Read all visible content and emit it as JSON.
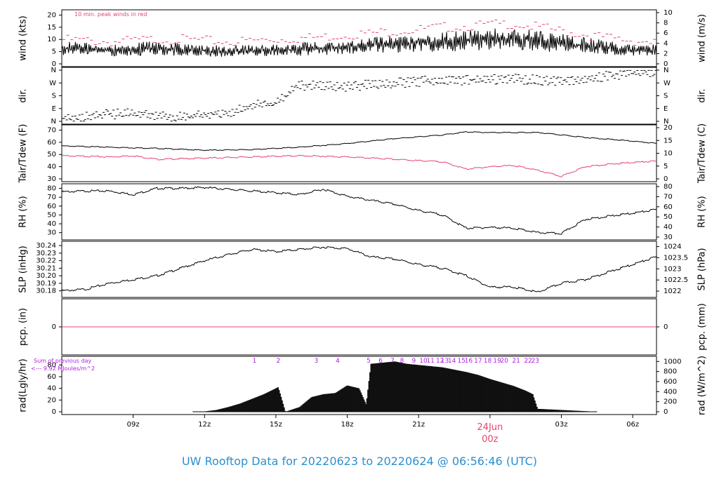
{
  "title": "UW Rooftop Data for 20220623  to  20220624 @ 06:56:46  (UTC)",
  "colors": {
    "title": "#2b8fd0",
    "peak": "#e3466e",
    "tdew": "#e3466e",
    "purple": "#b021e0",
    "date": "#e3466e",
    "line": "#000000"
  },
  "chart_data": [
    {
      "type": "line",
      "panel": "wind",
      "ylabel": "wind (kts)",
      "ylabel_right": "wind (m/s)",
      "ylim": [
        0,
        21
      ],
      "yticks": [
        0,
        5,
        10,
        15,
        20
      ],
      "yticks_right": [
        0,
        2,
        4,
        6,
        8,
        10
      ],
      "annotation": "10 min. peak winds in red",
      "series": [
        {
          "x": [
            6,
            7,
            8,
            9,
            10,
            11,
            12,
            13,
            14,
            15,
            16,
            17,
            18,
            19,
            20,
            21,
            22,
            23,
            24,
            25,
            26,
            27,
            28,
            29,
            30,
            31
          ],
          "values": [
            6.5,
            6,
            5.5,
            6,
            6.5,
            6,
            5.5,
            5,
            5.5,
            5.5,
            6,
            6.5,
            7,
            7.5,
            8,
            8.5,
            9,
            9.5,
            10,
            10.5,
            9.5,
            8.5,
            7.5,
            6.5,
            5.5,
            5.5
          ]
        },
        {
          "name": "10 min. peak winds",
          "x": [
            6,
            7,
            8,
            9,
            10,
            11,
            12,
            13,
            14,
            15,
            16,
            17,
            18,
            19,
            20,
            21,
            22,
            23,
            24,
            25,
            26,
            27,
            28,
            29,
            30,
            31
          ],
          "values": [
            10,
            9.5,
            9,
            9.5,
            10,
            10,
            9.5,
            9,
            9.5,
            10,
            10.5,
            11,
            12,
            12.5,
            13.5,
            14,
            15,
            15.5,
            16,
            16.5,
            15,
            13.5,
            12,
            10.5,
            9.5,
            9
          ]
        }
      ]
    },
    {
      "type": "scatter",
      "panel": "direction",
      "ylabel": "dir.",
      "ylabel_right": "dir.",
      "yticks": [
        "N",
        "E",
        "S",
        "W",
        "N"
      ],
      "series": [
        {
          "x": [
            6,
            7,
            8,
            9,
            10,
            11,
            12,
            13,
            14,
            15,
            16,
            17,
            18,
            19,
            20,
            21,
            22,
            23,
            24,
            25,
            26,
            27,
            28,
            29,
            30,
            31
          ],
          "values": [
            20,
            30,
            50,
            60,
            40,
            30,
            45,
            60,
            110,
            130,
            250,
            255,
            240,
            260,
            270,
            280,
            290,
            290,
            295,
            300,
            290,
            285,
            300,
            320,
            345,
            350
          ]
        }
      ]
    },
    {
      "type": "line",
      "panel": "temperature",
      "ylabel": "Tair/Tdew (F)",
      "ylabel_right": "Tair/Tdew (C)",
      "ylim": [
        30,
        72
      ],
      "yticks": [
        30,
        40,
        50,
        60,
        70
      ],
      "yticks_right": [
        0,
        5,
        10,
        15,
        20
      ],
      "series": [
        {
          "name": "Tair",
          "x": [
            6,
            8,
            10,
            12,
            14,
            16,
            18,
            20,
            22,
            23,
            24,
            26,
            27,
            28,
            30,
            31
          ],
          "values": [
            57,
            56,
            55,
            53.5,
            54,
            56,
            59,
            63,
            66,
            68.5,
            68,
            68,
            66,
            64,
            61,
            59
          ]
        },
        {
          "name": "Tdew",
          "x": [
            6,
            8,
            9,
            10,
            12,
            14,
            16,
            18,
            20,
            21,
            22,
            23,
            24,
            25,
            26,
            27,
            28,
            29,
            30,
            31
          ],
          "values": [
            49,
            48,
            49,
            46,
            47,
            48,
            49,
            48,
            46,
            45,
            44,
            38,
            40,
            41,
            37,
            32,
            40,
            42,
            43.5,
            44.5
          ]
        }
      ]
    },
    {
      "type": "line",
      "panel": "humidity",
      "ylabel": "RH (%)",
      "ylabel_right": "RH (%)",
      "ylim": [
        25,
        82
      ],
      "yticks": [
        30,
        40,
        50,
        60,
        70,
        80
      ],
      "series": [
        {
          "x": [
            6,
            7,
            8,
            9,
            10,
            11,
            12,
            14,
            16,
            17,
            18,
            20,
            21,
            22,
            23,
            24,
            25,
            26,
            27,
            28,
            30,
            31
          ],
          "values": [
            76,
            77,
            77,
            73,
            80,
            80,
            81,
            77,
            73,
            79,
            71,
            62,
            55,
            50,
            35,
            36,
            35,
            30,
            29,
            45,
            52,
            56
          ]
        }
      ]
    },
    {
      "type": "line",
      "panel": "pressure",
      "ylabel": "SLP (inHg)",
      "ylabel_right": "SLP (hPa)",
      "ylim": [
        30.175,
        30.242
      ],
      "yticks": [
        30.18,
        30.19,
        30.2,
        30.21,
        30.22,
        30.23,
        30.24
      ],
      "yticks_right": [
        "1022",
        "1022.5",
        "1023",
        "1023.5",
        "1024"
      ],
      "series": [
        {
          "x": [
            6,
            7,
            8,
            9,
            10,
            11,
            12,
            13,
            14,
            15,
            16,
            17,
            18,
            19,
            20,
            21,
            22,
            23,
            24,
            25,
            26,
            27,
            28,
            29,
            30,
            31
          ],
          "values": [
            30.18,
            30.182,
            30.19,
            30.195,
            30.2,
            30.21,
            30.22,
            30.228,
            30.235,
            30.232,
            30.235,
            30.238,
            30.236,
            30.225,
            30.222,
            30.215,
            30.21,
            30.2,
            30.185,
            30.185,
            30.178,
            30.19,
            30.195,
            30.205,
            30.215,
            30.225
          ]
        }
      ]
    },
    {
      "type": "line",
      "panel": "precipitation",
      "ylabel": "pcp. (in)",
      "ylabel_right": "pcp. (mm)",
      "yticks": [
        0
      ],
      "yticks_right": [
        0
      ],
      "series": [
        {
          "x": [
            6,
            31
          ],
          "values": [
            0,
            0
          ]
        }
      ]
    },
    {
      "type": "bar",
      "panel": "radiation",
      "ylabel": "rad(Lgly/hr)",
      "ylabel_right": "rad (W/m^2)",
      "ylim": [
        0,
        90
      ],
      "yticks": [
        0,
        20,
        40,
        60,
        80
      ],
      "yticks_right": [
        0,
        200,
        400,
        600,
        800,
        1000
      ],
      "annotation_top": "Sum of previous day",
      "annotation_bottom": "<--- 9.92 MJoules/m^2",
      "hour_labels": [
        "1",
        "2",
        "3",
        "4",
        "5",
        "6",
        "7",
        "8",
        "9",
        "10",
        "11",
        "12",
        "13",
        "14",
        "15",
        "16",
        "17",
        "18",
        "19",
        "20",
        "21",
        "22",
        "23"
      ],
      "hour_labels_x": [
        14.1,
        15.1,
        16.7,
        17.6,
        18.9,
        19.4,
        19.9,
        20.3,
        20.8,
        21.2,
        21.5,
        21.9,
        22.1,
        22.4,
        22.8,
        23.1,
        23.5,
        23.9,
        24.3,
        24.6,
        25.1,
        25.6,
        25.9
      ],
      "series": [
        {
          "x": [
            11.5,
            12,
            12.5,
            13,
            13.5,
            14,
            14.5,
            15,
            15.1,
            15.4,
            16,
            16.5,
            17,
            17.5,
            18,
            18.5,
            18.8,
            19,
            19.5,
            20,
            20.5,
            21,
            21.5,
            22,
            22.5,
            23,
            23.5,
            24,
            24.5,
            25,
            25.5,
            25.8,
            26,
            26.5,
            27,
            27.5,
            28,
            28.5
          ],
          "values": [
            0,
            0.5,
            3,
            8,
            14,
            22,
            30,
            40,
            42,
            0,
            8,
            25,
            30,
            32,
            45,
            40,
            12,
            82,
            84,
            86,
            82,
            80,
            78,
            76,
            72,
            68,
            63,
            56,
            50,
            44,
            36,
            30,
            5,
            4,
            3,
            2,
            1,
            0
          ]
        }
      ]
    }
  ],
  "x_axis": {
    "ticks": [
      "09z",
      "12z",
      "15z",
      "18z",
      "21z",
      "03z",
      "06z"
    ],
    "tick_hours": [
      9,
      12,
      15,
      18,
      21,
      27,
      30
    ],
    "date_label": "24Jun",
    "date_sublabel": "00z",
    "date_hour": 24,
    "range": [
      6,
      31
    ]
  }
}
